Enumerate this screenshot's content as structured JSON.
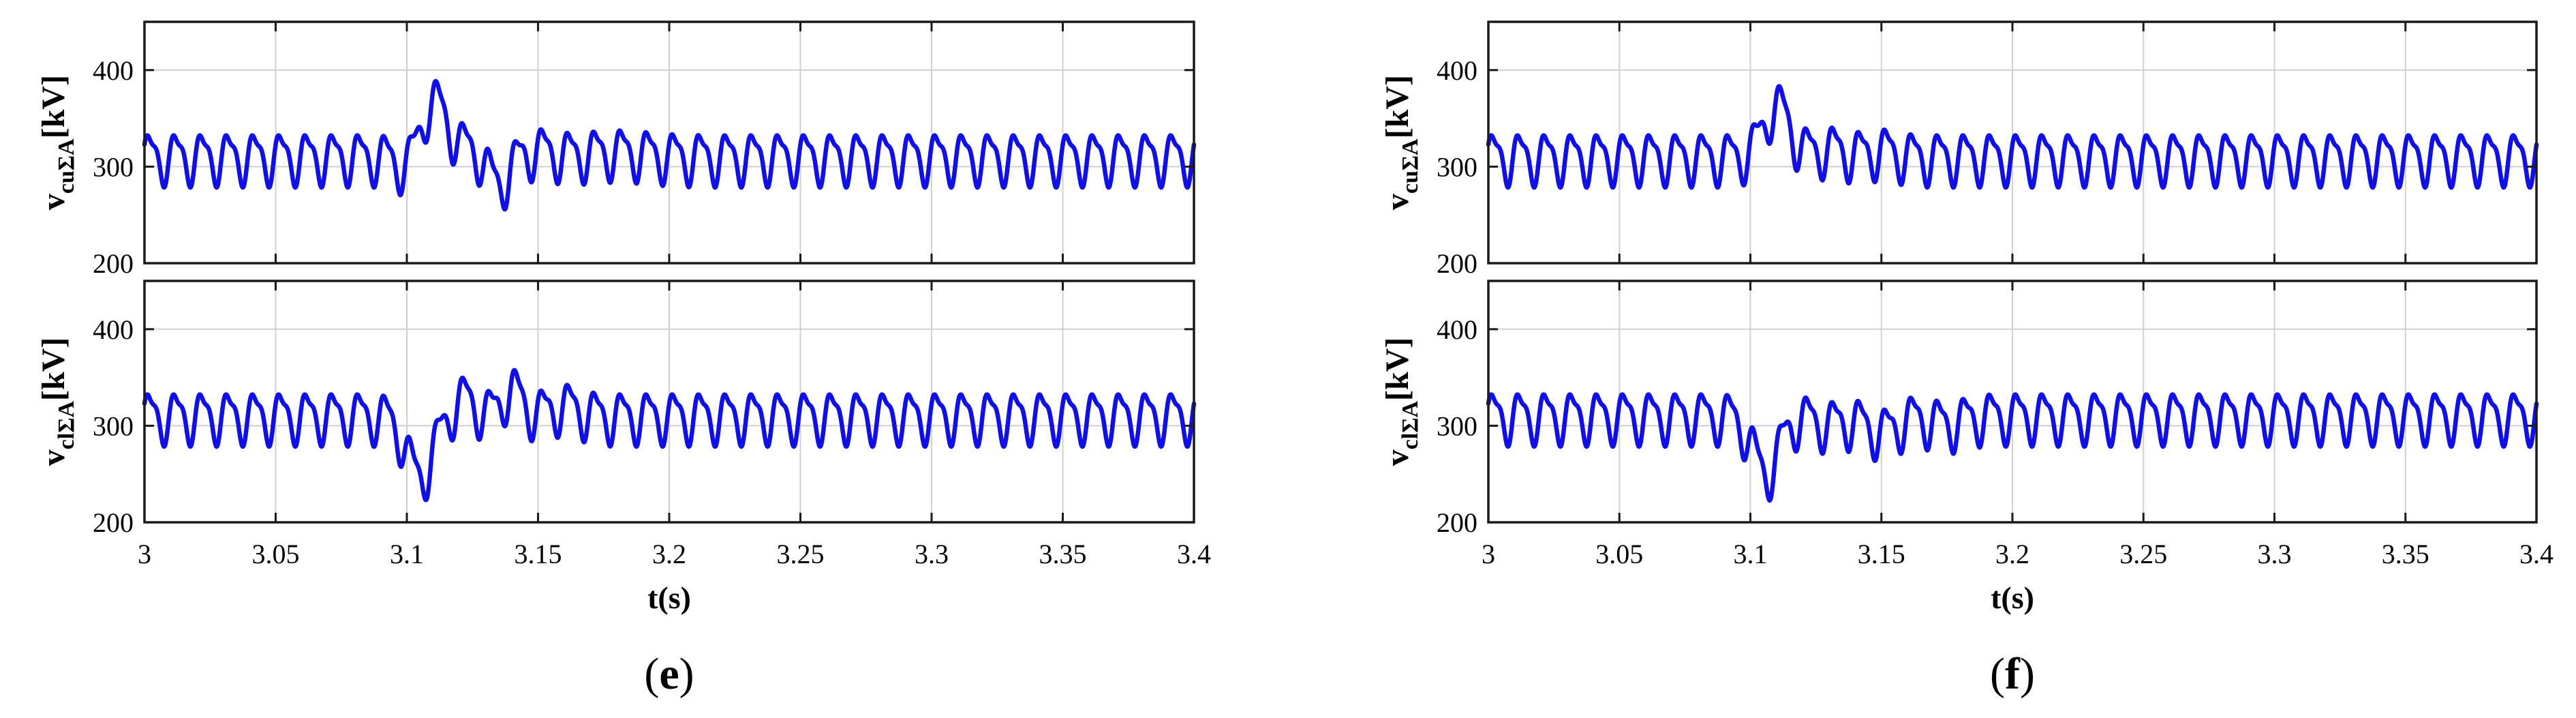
{
  "chart_data": [
    {
      "type": "line",
      "panel_label": "(e)",
      "xlabel": "t(s)",
      "xlim": [
        3,
        3.4
      ],
      "x_ticks": [
        "3",
        "3.05",
        "3.1",
        "3.15",
        "3.2",
        "3.25",
        "3.3",
        "3.35",
        "3.4"
      ],
      "grid": true,
      "line_color": "#1010e6",
      "subplots": [
        {
          "ylabel_main": "v",
          "ylabel_sub": "cuΣA",
          "ylabel_unit": "[kV]",
          "ylim": [
            200,
            450
          ],
          "y_ticks": [
            "200",
            "300",
            "400"
          ],
          "base": 310,
          "pattern": {
            "amp": 24,
            "freq": 100,
            "phase": 0.2,
            "h2": 0.35
          },
          "events": [
            {
              "t": 3.11,
              "amp": 58,
              "w": 0.0055
            },
            {
              "t": 3.101,
              "amp": -18,
              "w": 0.004
            },
            {
              "t": 3.125,
              "amp": 8,
              "w": 0.004
            },
            {
              "t": 3.135,
              "amp": -28,
              "w": 0.004
            },
            {
              "t": 3.15,
              "amp": 6,
              "w": 0.006
            },
            {
              "t": 3.18,
              "amp": 5,
              "w": 0.012
            }
          ]
        },
        {
          "ylabel_main": "v",
          "ylabel_sub": "clΣA",
          "ylabel_unit": "[kV]",
          "ylim": [
            200,
            450
          ],
          "y_ticks": [
            "200",
            "300",
            "400"
          ],
          "base": 310,
          "pattern": {
            "amp": 24,
            "freq": 100,
            "phase": 0.2,
            "h2": 0.35
          },
          "events": [
            {
              "t": 3.105,
              "amp": -62,
              "w": 0.005
            },
            {
              "t": 3.122,
              "amp": 18,
              "w": 0.004
            },
            {
              "t": 3.14,
              "amp": 26,
              "w": 0.004
            },
            {
              "t": 3.16,
              "amp": 10,
              "w": 0.006
            }
          ]
        }
      ]
    },
    {
      "type": "line",
      "panel_label": "(f)",
      "xlabel": "t(s)",
      "xlim": [
        3,
        3.4
      ],
      "x_ticks": [
        "3",
        "3.05",
        "3.1",
        "3.15",
        "3.2",
        "3.25",
        "3.3",
        "3.35",
        "3.4"
      ],
      "grid": true,
      "line_color": "#1010e6",
      "subplots": [
        {
          "ylabel_main": "v",
          "ylabel_sub": "cuΣA",
          "ylabel_unit": "[kV]",
          "ylim": [
            200,
            450
          ],
          "y_ticks": [
            "200",
            "300",
            "400"
          ],
          "base": 310,
          "pattern": {
            "amp": 24,
            "freq": 100,
            "phase": 0.2,
            "h2": 0.35
          },
          "events": [
            {
              "t": 3.11,
              "amp": 52,
              "w": 0.005
            },
            {
              "t": 3.13,
              "amp": 8,
              "w": 0.006
            },
            {
              "t": 3.15,
              "amp": 6,
              "w": 0.006
            }
          ]
        },
        {
          "ylabel_main": "v",
          "ylabel_sub": "clΣA",
          "ylabel_unit": "[kV]",
          "ylim": [
            200,
            450
          ],
          "y_ticks": [
            "200",
            "300",
            "400"
          ],
          "base": 310,
          "pattern": {
            "amp": 24,
            "freq": 100,
            "phase": 0.2,
            "h2": 0.35
          },
          "events": [
            {
              "t": 3.106,
              "amp": -58,
              "w": 0.005
            },
            {
              "t": 3.13,
              "amp": -8,
              "w": 0.006
            },
            {
              "t": 3.15,
              "amp": -16,
              "w": 0.006
            },
            {
              "t": 3.175,
              "amp": -8,
              "w": 0.006
            }
          ]
        }
      ]
    }
  ]
}
